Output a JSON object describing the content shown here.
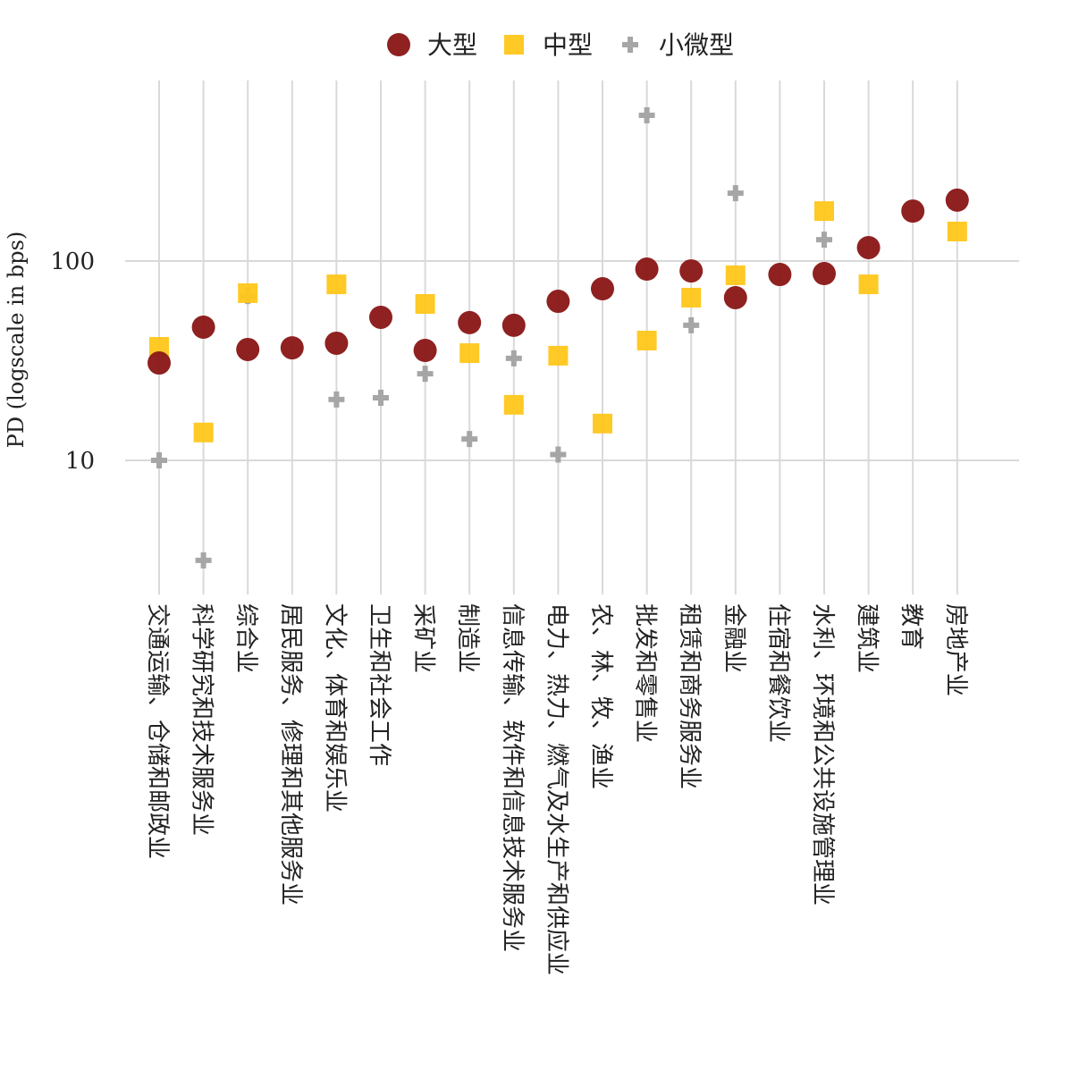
{
  "chart_data": {
    "type": "scatter",
    "title": "",
    "xlabel": "",
    "ylabel": "PD (logscale in bps)",
    "yscale": "log",
    "ylim": [
      2.1,
      800
    ],
    "yticks": [
      10,
      100
    ],
    "ytick_labels": [
      "10",
      "100"
    ],
    "grid": true,
    "legend_position": "top",
    "categories": [
      "交通运输、仓储和邮政业",
      "科学研究和技术服务业",
      "综合业",
      "居民服务、修理和其他服务业",
      "文化、体育和娱乐业",
      "卫生和社会工作",
      "采矿业",
      "制造业",
      "信息传输、软件和信息技术服务业",
      "电力、热力、燃气及水生产和供应业",
      "农、林、牧、渔业",
      "批发和零售业",
      "租赁和商务服务业",
      "金融业",
      "住宿和餐饮业",
      "水利、环境和公共设施管理业",
      "建筑业",
      "教育",
      "房地产业"
    ],
    "series": [
      {
        "name": "大型",
        "marker": "circle",
        "color": "#8B1A1A",
        "values": [
          30.8,
          46.6,
          36.0,
          36.7,
          38.7,
          52.2,
          35.6,
          49.1,
          47.6,
          62.8,
          72.6,
          91.1,
          89.2,
          65.5,
          85.6,
          86.5,
          116.8,
          178,
          202
        ]
      },
      {
        "name": "中型",
        "marker": "square",
        "color": "#FFC61A",
        "values": [
          37.1,
          13.8,
          69,
          null,
          76.4,
          null,
          60.9,
          34.5,
          19.0,
          33.5,
          15.3,
          39.9,
          65.5,
          84.8,
          null,
          178,
          76.4,
          null,
          140.6
        ]
      },
      {
        "name": "小微型",
        "marker": "plus",
        "color": "#A6A6A6",
        "values": [
          10,
          3.15,
          66.8,
          null,
          20.2,
          20.6,
          27.2,
          12.8,
          32.5,
          10.7,
          null,
          538,
          47.6,
          219,
          null,
          128,
          null,
          null,
          null
        ]
      }
    ]
  }
}
